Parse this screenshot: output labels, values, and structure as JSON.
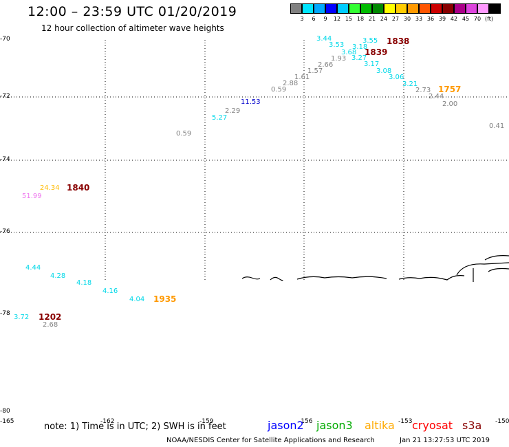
{
  "header": {
    "title": "12:00 – 23:59 UTC 01/20/2019",
    "subtitle": "12 hour collection of altimeter wave heights"
  },
  "legend": {
    "colors": [
      "#808080",
      "#00e5ff",
      "#00a8ff",
      "#0000ff",
      "#00ccff",
      "#33ff33",
      "#00bb00",
      "#008800",
      "#ffff00",
      "#ffcc00",
      "#ff9900",
      "#ff5500",
      "#cc0000",
      "#880000",
      "#aa0088",
      "#dd44dd",
      "#ff99ff",
      "#000000"
    ],
    "labels": [
      "3",
      "6",
      "9",
      "12",
      "15",
      "18",
      "21",
      "24",
      "27",
      "30",
      "33",
      "36",
      "39",
      "42",
      "45",
      "70",
      "(ft)"
    ]
  },
  "axes": {
    "lat_labels": [
      "-70",
      "-72",
      "-74",
      "-76",
      "-78",
      "-80"
    ],
    "lon_labels": [
      "-165",
      "-162",
      "-159",
      "-156",
      "-153",
      "-150"
    ]
  },
  "observations": [
    {
      "text": "3.44",
      "color": "#00d8e8"
    },
    {
      "text": "3.55",
      "color": "#00d8e8"
    },
    {
      "text": "3.53",
      "color": "#00d8e8"
    },
    {
      "text": "3.18",
      "color": "#00d8e8"
    },
    {
      "text": "3.68",
      "color": "#00d8e8"
    },
    {
      "text": "3.27",
      "color": "#00d8e8"
    },
    {
      "text": "3.17",
      "color": "#00d8e8"
    },
    {
      "text": "3.08",
      "color": "#00d8e8"
    },
    {
      "text": "3.06",
      "color": "#00d8e8"
    },
    {
      "text": "3.21",
      "color": "#00d8e8"
    },
    {
      "text": "2.66",
      "color": "#808080"
    },
    {
      "text": "1.93",
      "color": "#808080"
    },
    {
      "text": "1.57",
      "color": "#808080"
    },
    {
      "text": "1.61",
      "color": "#808080"
    },
    {
      "text": "2.88",
      "color": "#808080"
    },
    {
      "text": "0.59",
      "color": "#808080"
    },
    {
      "text": "2.73",
      "color": "#808080"
    },
    {
      "text": "2.44",
      "color": "#808080"
    },
    {
      "text": "2.00",
      "color": "#808080"
    },
    {
      "text": "0.41",
      "color": "#808080"
    },
    {
      "text": "11.53",
      "color": "#0000cc"
    },
    {
      "text": "2.29",
      "color": "#808080"
    },
    {
      "text": "5.27",
      "color": "#00d8e8"
    },
    {
      "text": "0.59",
      "color": "#808080"
    },
    {
      "text": "24.34",
      "color": "#ffbb00"
    },
    {
      "text": "51.99",
      "color": "#ee77ee"
    },
    {
      "text": "4.44",
      "color": "#00d8e8"
    },
    {
      "text": "4.28",
      "color": "#00d8e8"
    },
    {
      "text": "4.18",
      "color": "#00d8e8"
    },
    {
      "text": "4.16",
      "color": "#00d8e8"
    },
    {
      "text": "4.04",
      "color": "#00d8e8"
    },
    {
      "text": "3.72",
      "color": "#00d8e8"
    },
    {
      "text": "2.68",
      "color": "#808080"
    }
  ],
  "time_labels": [
    {
      "text": "1838",
      "color": "#880000"
    },
    {
      "text": "1839",
      "color": "#880000"
    },
    {
      "text": "1757",
      "color": "#ff9900"
    },
    {
      "text": "1840",
      "color": "#880000"
    },
    {
      "text": "1935",
      "color": "#ff9900"
    },
    {
      "text": "1202",
      "color": "#880000"
    }
  ],
  "footer": {
    "note": "note: 1) Time is in UTC; 2) SWH is in feet",
    "satellites": [
      {
        "name": "jason2",
        "color": "#0000ff"
      },
      {
        "name": "jason3",
        "color": "#00aa00"
      },
      {
        "name": "altika",
        "color": "#ffaa00"
      },
      {
        "name": "cryosat",
        "color": "#ff0000"
      },
      {
        "name": "s3a",
        "color": "#880000"
      }
    ],
    "credit": "NOAA/NESDIS Center for Satellite Applications and Research",
    "timestamp": "Jan 21 13:27:53 UTC 2019"
  }
}
